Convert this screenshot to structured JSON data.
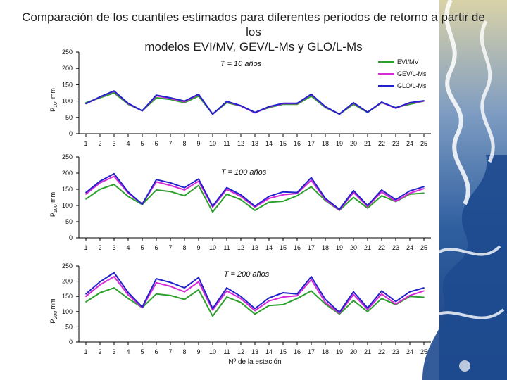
{
  "title": {
    "line1": "Comparación de los cuantiles estimados para diferentes períodos de retorno a partir de los",
    "line2": "modelos EVI/MV, GEV/L-Ms y GLO/L-Ms"
  },
  "colors": {
    "EVI/MV": "#2ca02c",
    "GEV/L-Ms": "#d62ad6",
    "GLO/L-Ms": "#2222cc"
  },
  "chart_data": [
    {
      "type": "line",
      "annotation": "T = 10 años",
      "ylabel": "P10, mm",
      "ylabel_main": "P",
      "ylabel_sub": "10",
      "ylabel_unit": ", mm",
      "ylim": [
        0,
        250
      ],
      "yticks": [
        0,
        50,
        100,
        150,
        200,
        250
      ],
      "x": [
        1,
        2,
        3,
        4,
        5,
        6,
        7,
        8,
        9,
        10,
        11,
        12,
        13,
        14,
        15,
        16,
        17,
        18,
        19,
        20,
        21,
        22,
        23,
        24,
        25
      ],
      "legend": [
        "EVI/MV",
        "GEV/L-Ms",
        "GLO/L-Ms"
      ],
      "series": [
        {
          "name": "EVI/MV",
          "values": [
            95,
            110,
            125,
            90,
            70,
            110,
            105,
            95,
            115,
            60,
            95,
            85,
            65,
            80,
            90,
            90,
            115,
            80,
            60,
            90,
            65,
            95,
            80,
            90,
            100
          ]
        },
        {
          "name": "GEV/L-Ms",
          "values": [
            92,
            112,
            130,
            92,
            70,
            116,
            108,
            98,
            120,
            60,
            98,
            85,
            64,
            82,
            92,
            92,
            120,
            82,
            60,
            94,
            66,
            96,
            78,
            94,
            100
          ]
        },
        {
          "name": "GLO/L-Ms",
          "values": [
            92,
            113,
            131,
            93,
            70,
            118,
            110,
            100,
            121,
            60,
            99,
            86,
            65,
            83,
            93,
            93,
            121,
            83,
            60,
            95,
            66,
            97,
            79,
            95,
            101
          ]
        }
      ]
    },
    {
      "type": "line",
      "annotation": "T = 100 años",
      "ylabel": "P100, mm",
      "ylabel_main": "P",
      "ylabel_sub": "100",
      "ylabel_unit": " mm",
      "ylim": [
        0,
        250
      ],
      "yticks": [
        0,
        50,
        100,
        150,
        200,
        250
      ],
      "x": [
        1,
        2,
        3,
        4,
        5,
        6,
        7,
        8,
        9,
        10,
        11,
        12,
        13,
        14,
        15,
        16,
        17,
        18,
        19,
        20,
        21,
        22,
        23,
        24,
        25
      ],
      "series": [
        {
          "name": "EVI/MV",
          "values": [
            120,
            150,
            165,
            128,
            103,
            148,
            143,
            130,
            162,
            80,
            135,
            118,
            85,
            110,
            113,
            130,
            158,
            115,
            85,
            125,
            92,
            130,
            112,
            135,
            138
          ]
        },
        {
          "name": "GEV/L-Ms",
          "values": [
            135,
            170,
            190,
            138,
            105,
            173,
            162,
            148,
            175,
            95,
            150,
            128,
            95,
            122,
            133,
            137,
            178,
            118,
            86,
            140,
            97,
            142,
            113,
            138,
            152
          ]
        },
        {
          "name": "GLO/L-Ms",
          "values": [
            140,
            175,
            198,
            142,
            104,
            180,
            170,
            155,
            182,
            98,
            155,
            133,
            98,
            128,
            142,
            140,
            186,
            122,
            88,
            146,
            100,
            148,
            118,
            145,
            158
          ]
        }
      ]
    },
    {
      "type": "line",
      "annotation": "T = 200 años",
      "ylabel": "P200 mm",
      "ylabel_main": "P",
      "ylabel_sub": "200",
      "ylabel_unit": " mm",
      "xlabel": "Nº de la estación",
      "ylim": [
        0,
        250
      ],
      "yticks": [
        0,
        50,
        100,
        150,
        200,
        250
      ],
      "x": [
        1,
        2,
        3,
        4,
        5,
        6,
        7,
        8,
        9,
        10,
        11,
        12,
        13,
        14,
        15,
        16,
        17,
        18,
        19,
        20,
        21,
        22,
        23,
        24,
        25
      ],
      "series": [
        {
          "name": "EVI/MV",
          "values": [
            132,
            162,
            178,
            143,
            113,
            158,
            153,
            140,
            172,
            85,
            148,
            130,
            92,
            120,
            123,
            143,
            168,
            125,
            92,
            136,
            100,
            143,
            123,
            150,
            147
          ]
        },
        {
          "name": "GEV/L-Ms",
          "values": [
            150,
            188,
            215,
            155,
            113,
            195,
            183,
            165,
            198,
            105,
            168,
            143,
            103,
            135,
            148,
            152,
            205,
            130,
            95,
            156,
            107,
            158,
            125,
            153,
            168
          ]
        },
        {
          "name": "GLO/L-Ms",
          "values": [
            158,
            198,
            228,
            163,
            115,
            208,
            196,
            178,
            212,
            110,
            178,
            150,
            110,
            145,
            162,
            158,
            215,
            140,
            98,
            165,
            112,
            168,
            133,
            165,
            178
          ]
        }
      ]
    }
  ]
}
